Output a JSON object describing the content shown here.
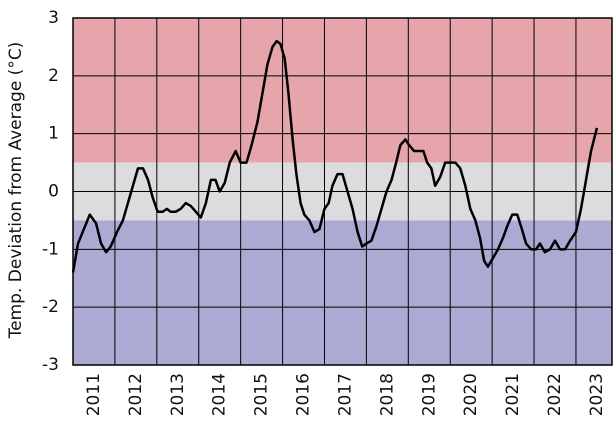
{
  "chart_data": {
    "type": "line",
    "y_label": "Temp. Deviation from Average (°C)",
    "xlim": [
      2011,
      2023.86
    ],
    "xticks": [
      2011,
      2012,
      2013,
      2014,
      2015,
      2016,
      2017,
      2018,
      2019,
      2020,
      2021,
      2022,
      2023
    ],
    "ylim": [
      -3,
      3
    ],
    "yticks": [
      -3,
      -2,
      -1,
      0,
      1,
      2,
      3
    ],
    "grid": true,
    "bands": [
      {
        "min": 0.5,
        "color": "#e6a5ab"
      },
      {
        "min": -0.5,
        "max": 0.5,
        "color": "#dcdcde"
      },
      {
        "max": -0.5,
        "color": "#aaaad2"
      }
    ],
    "series": [
      {
        "color": "#000000",
        "x": [
          2011.0,
          2011.12,
          2011.26,
          2011.4,
          2011.55,
          2011.67,
          2011.79,
          2011.9,
          2012.05,
          2012.19,
          2012.31,
          2012.43,
          2012.55,
          2012.67,
          2012.79,
          2012.9,
          2013.02,
          2013.14,
          2013.24,
          2013.33,
          2013.45,
          2013.57,
          2013.69,
          2013.81,
          2013.93,
          2014.05,
          2014.17,
          2014.29,
          2014.4,
          2014.5,
          2014.62,
          2014.74,
          2014.88,
          2015.0,
          2015.14,
          2015.26,
          2015.4,
          2015.52,
          2015.64,
          2015.76,
          2015.86,
          2015.95,
          2016.05,
          2016.14,
          2016.24,
          2016.33,
          2016.43,
          2016.52,
          2016.64,
          2016.76,
          2016.88,
          2017.0,
          2017.1,
          2017.19,
          2017.31,
          2017.43,
          2017.55,
          2017.67,
          2017.79,
          2017.9,
          2018.0,
          2018.12,
          2018.24,
          2018.36,
          2018.48,
          2018.6,
          2018.71,
          2018.81,
          2018.93,
          2019.02,
          2019.14,
          2019.26,
          2019.36,
          2019.45,
          2019.55,
          2019.64,
          2019.76,
          2019.88,
          2020.0,
          2020.12,
          2020.24,
          2020.36,
          2020.48,
          2020.6,
          2020.71,
          2020.81,
          2020.9,
          2021.02,
          2021.14,
          2021.26,
          2021.36,
          2021.48,
          2021.6,
          2021.71,
          2021.81,
          2021.93,
          2022.05,
          2022.14,
          2022.26,
          2022.38,
          2022.5,
          2022.62,
          2022.74,
          2022.86,
          2023.0,
          2023.12,
          2023.24,
          2023.36,
          2023.5
        ],
        "values": [
          -1.4,
          -0.9,
          -0.65,
          -0.4,
          -0.55,
          -0.9,
          -1.05,
          -0.95,
          -0.7,
          -0.5,
          -0.2,
          0.1,
          0.4,
          0.4,
          0.2,
          -0.1,
          -0.35,
          -0.35,
          -0.3,
          -0.35,
          -0.35,
          -0.3,
          -0.2,
          -0.25,
          -0.35,
          -0.45,
          -0.2,
          0.2,
          0.2,
          0.0,
          0.15,
          0.5,
          0.7,
          0.5,
          0.5,
          0.8,
          1.2,
          1.7,
          2.2,
          2.5,
          2.6,
          2.55,
          2.3,
          1.7,
          0.9,
          0.3,
          -0.2,
          -0.4,
          -0.5,
          -0.7,
          -0.65,
          -0.3,
          -0.2,
          0.1,
          0.3,
          0.3,
          0.0,
          -0.3,
          -0.7,
          -0.95,
          -0.9,
          -0.85,
          -0.6,
          -0.3,
          0.0,
          0.2,
          0.5,
          0.8,
          0.9,
          0.8,
          0.7,
          0.7,
          0.7,
          0.5,
          0.4,
          0.1,
          0.25,
          0.5,
          0.5,
          0.5,
          0.4,
          0.1,
          -0.3,
          -0.5,
          -0.8,
          -1.2,
          -1.3,
          -1.15,
          -1.0,
          -0.8,
          -0.6,
          -0.4,
          -0.4,
          -0.65,
          -0.9,
          -1.0,
          -1.0,
          -0.9,
          -1.05,
          -1.0,
          -0.85,
          -1.0,
          -1.0,
          -0.85,
          -0.7,
          -0.3,
          0.2,
          0.7,
          1.1
        ]
      }
    ]
  }
}
